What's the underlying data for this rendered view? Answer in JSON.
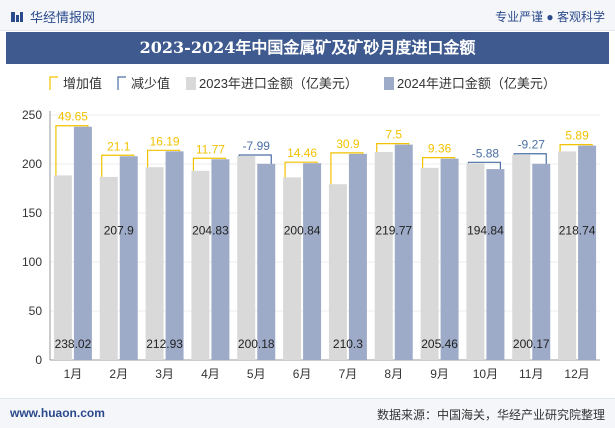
{
  "header": {
    "brand": "华经情报网",
    "motto": "专业严谨 ● 客观科学"
  },
  "chart_data": {
    "type": "bar",
    "title": "2023-2024年中国金属矿及矿砂月度进口金额",
    "categories": [
      "1月",
      "2月",
      "3月",
      "4月",
      "5月",
      "6月",
      "7月",
      "8月",
      "9月",
      "10月",
      "11月",
      "12月"
    ],
    "legend": [
      "增加值",
      "减少值",
      "2023年进口金额（亿美元）",
      "2024年进口金额（亿美元）"
    ],
    "legend_position": "top-left",
    "ylim": [
      0,
      250
    ],
    "yticks": [
      0,
      50,
      100,
      150,
      200,
      250
    ],
    "series": [
      {
        "name": "2023年进口金额（亿美元）",
        "values": [
          188.37,
          186.8,
          196.74,
          193.06,
          208.17,
          186.38,
          179.4,
          212.27,
          196.1,
          200.72,
          209.44,
          212.85
        ]
      },
      {
        "name": "2024年进口金额（亿美元）",
        "values": [
          238.02,
          207.9,
          212.93,
          204.83,
          200.18,
          200.84,
          210.3,
          219.77,
          205.46,
          194.84,
          200.17,
          218.74
        ]
      }
    ],
    "changes": [
      49.65,
      21.1,
      16.19,
      11.77,
      -7.99,
      14.46,
      30.9,
      7.5,
      9.36,
      -5.88,
      -9.27,
      5.89
    ],
    "colors": {
      "y2023": "#d9d9d9",
      "y2024": "#9dabc8",
      "increase": "#f2c200",
      "decrease": "#4a6fa5",
      "increase_text": "#f2c200",
      "decrease_text": "#4a6fa5"
    },
    "grid": true
  },
  "footer": {
    "site": "www.huaon.com",
    "source": "数据来源：中国海关，华经产业研究院整理"
  }
}
